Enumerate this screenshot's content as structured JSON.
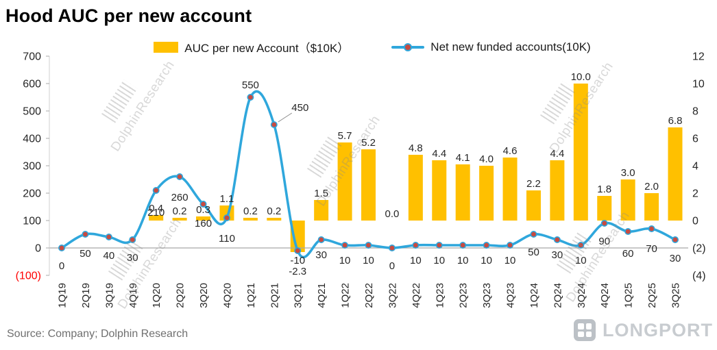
{
  "title": "Hood AUC per new account",
  "legend": {
    "bar_label": "AUC per new Account（$10K）",
    "line_label": "Net new funded accounts(10K)"
  },
  "watermark": "DolphinResearch",
  "source": "Source: Company; Dolphin Research",
  "logo_text": "LONGPORT",
  "colors": {
    "bar": "#FFC000",
    "line": "#2FA7DC",
    "marker": "#C74B42",
    "negative_tick": "#FF0000",
    "axis": "#A8A8A8",
    "label": "#262626"
  },
  "chart_data": {
    "type": "combo-bar-line",
    "grid": false,
    "legend_position": "top",
    "categories": [
      "1Q19",
      "2Q19",
      "3Q19",
      "4Q19",
      "1Q20",
      "2Q20",
      "3Q20",
      "4Q20",
      "1Q21",
      "2Q21",
      "3Q21",
      "4Q21",
      "1Q22",
      "2Q22",
      "3Q22",
      "4Q22",
      "1Q23",
      "2Q23",
      "3Q23",
      "4Q23",
      "1Q24",
      "2Q24",
      "3Q24",
      "4Q24",
      "1Q25",
      "2Q25",
      "3Q25"
    ],
    "series": [
      {
        "name": "AUC per new Account（$10K）",
        "type": "bar",
        "axis": "right",
        "color": "#FFC000",
        "values": [
          null,
          null,
          null,
          null,
          0.4,
          0.2,
          0.3,
          1.1,
          0.2,
          0.2,
          -2.3,
          1.5,
          5.7,
          5.2,
          0.0,
          4.8,
          4.4,
          4.1,
          4.0,
          4.6,
          2.2,
          4.4,
          10.0,
          1.8,
          3.0,
          2.0,
          6.8
        ]
      },
      {
        "name": "Net new funded accounts(10K)",
        "type": "line",
        "axis": "left",
        "color": "#2FA7DC",
        "marker_color": "#C74B42",
        "values": [
          0,
          50,
          40,
          30,
          210,
          260,
          160,
          110,
          550,
          450,
          -10,
          30,
          10,
          10,
          0,
          10,
          10,
          10,
          10,
          10,
          50,
          30,
          10,
          90,
          60,
          70,
          30
        ]
      }
    ],
    "left_axis": {
      "min": -100,
      "max": 700,
      "step": 100,
      "values": [
        700,
        600,
        500,
        400,
        300,
        200,
        100,
        0,
        -100
      ],
      "labels": [
        "700",
        "600",
        "500",
        "400",
        "300",
        "200",
        "100",
        "0",
        "(100)"
      ],
      "negative_label_color": "#FF0000"
    },
    "right_axis": {
      "min": -4,
      "max": 12,
      "step": 2,
      "values": [
        12,
        10,
        8,
        6,
        4,
        2,
        0,
        -2,
        -4
      ],
      "labels": [
        "12",
        "10",
        "8",
        "6",
        "4",
        "2",
        "0",
        "(2)",
        "(4)"
      ]
    },
    "annotations": {
      "callout": {
        "category": "2Q21",
        "text": "450",
        "dx": 38,
        "dy": -25
      }
    },
    "label_hints": {
      "line_label_dy_default": 22,
      "line_label_dy": {
        "1Q19": 26,
        "2Q19": 28,
        "3Q19": 27,
        "4Q19": 26,
        "1Q20": 32,
        "2Q20": 30,
        "3Q20": 28,
        "4Q20": 30,
        "1Q21": -18,
        "3Q21": 14,
        "3Q22": 26,
        "1Q24": 26,
        "4Q24": 26,
        "1Q25": 32,
        "2Q25": 29,
        "3Q25": 27
      },
      "bar_label_dy": {
        "3Q21": 28
      }
    }
  }
}
